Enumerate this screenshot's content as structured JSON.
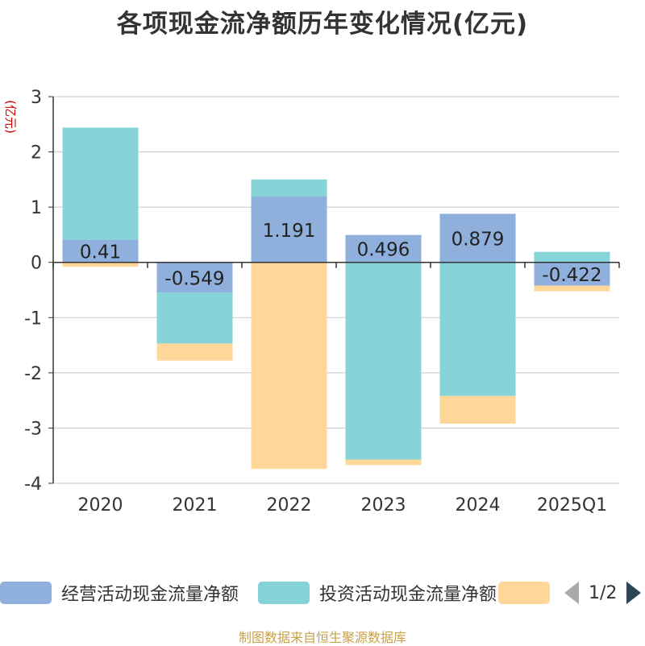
{
  "title": "各项现金流净额历年变化情况(亿元)",
  "source": "制图数据来自恒生聚源数据库",
  "pager": {
    "text": "1/2"
  },
  "chart_data": {
    "type": "bar",
    "stacked": true,
    "title": "各项现金流净额历年变化情况(亿元)",
    "ylabel": "(亿元)",
    "ylim": [
      -4,
      3
    ],
    "yticks": [
      3,
      2,
      1,
      0,
      -1,
      -2,
      -3,
      -4
    ],
    "grid": true,
    "legend_position": "bottom",
    "categories": [
      "2020",
      "2021",
      "2022",
      "2023",
      "2024",
      "2025Q1"
    ],
    "series": [
      {
        "name": "经营活动现金流量净额",
        "color": "#8fb0dc",
        "values": [
          0.41,
          -0.549,
          1.191,
          0.496,
          0.879,
          -0.422
        ],
        "labels": [
          "0.41",
          "-0.549",
          "1.191",
          "0.496",
          "0.879",
          "-0.422"
        ]
      },
      {
        "name": "投资活动现金流量净额",
        "color": "#86d4d7",
        "values": [
          2.03,
          -0.92,
          0.31,
          -3.57,
          -2.42,
          0.19
        ]
      },
      {
        "name": "",
        "color": "#ffd899",
        "values": [
          -0.08,
          -0.31,
          -3.74,
          -0.1,
          -0.5,
          -0.1
        ]
      }
    ]
  }
}
